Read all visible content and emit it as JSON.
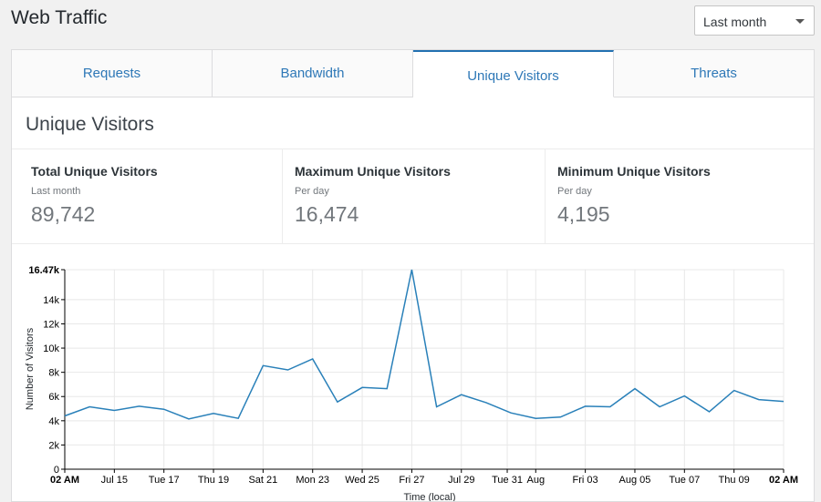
{
  "header": {
    "title": "Web Traffic",
    "range_select": {
      "selected": "Last month"
    }
  },
  "tabs": [
    {
      "label": "Requests",
      "active": false
    },
    {
      "label": "Bandwidth",
      "active": false
    },
    {
      "label": "Unique Visitors",
      "active": true
    },
    {
      "label": "Threats",
      "active": false
    }
  ],
  "section": {
    "title": "Unique Visitors"
  },
  "stats": [
    {
      "label": "Total Unique Visitors",
      "sub": "Last month",
      "value": "89,742"
    },
    {
      "label": "Maximum Unique Visitors",
      "sub": "Per day",
      "value": "16,474"
    },
    {
      "label": "Minimum Unique Visitors",
      "sub": "Per day",
      "value": "4,195"
    }
  ],
  "colors": {
    "accent": "#2271b1",
    "line": "#2980b9",
    "tab_text": "#2e78b7"
  },
  "icons": {
    "range_select": "caret-down-icon"
  },
  "chart_data": {
    "type": "line",
    "xlabel": "Time (local)",
    "ylabel": "Number of Visitors",
    "ylim": [
      0,
      16474
    ],
    "y_ticks": [
      {
        "value": 0,
        "label": "0"
      },
      {
        "value": 2000,
        "label": "2k"
      },
      {
        "value": 4000,
        "label": "4k"
      },
      {
        "value": 6000,
        "label": "6k"
      },
      {
        "value": 8000,
        "label": "8k"
      },
      {
        "value": 10000,
        "label": "10k"
      },
      {
        "value": 12000,
        "label": "12k"
      },
      {
        "value": 14000,
        "label": "14k"
      },
      {
        "value": 16474,
        "label": "16.47k",
        "bold": true
      }
    ],
    "x_ticks": [
      {
        "index": 0,
        "label": "02 AM",
        "bold": true
      },
      {
        "index": 2,
        "label": "Jul 15"
      },
      {
        "index": 4,
        "label": "Tue 17"
      },
      {
        "index": 6,
        "label": "Thu 19"
      },
      {
        "index": 8,
        "label": "Sat 21"
      },
      {
        "index": 10,
        "label": "Mon 23"
      },
      {
        "index": 12,
        "label": "Wed 25"
      },
      {
        "index": 14,
        "label": "Fri 27"
      },
      {
        "index": 16,
        "label": "Jul 29"
      },
      {
        "index": 17.85,
        "label": "Tue 31"
      },
      {
        "index": 19,
        "label": "Aug"
      },
      {
        "index": 21,
        "label": "Fri 03"
      },
      {
        "index": 23,
        "label": "Aug 05"
      },
      {
        "index": 25,
        "label": "Tue 07"
      },
      {
        "index": 27,
        "label": "Thu 09"
      },
      {
        "index": 29,
        "label": "02 AM",
        "bold": true
      }
    ],
    "x_count": 30,
    "values": [
      4400,
      5150,
      4850,
      5200,
      4950,
      4150,
      4600,
      4200,
      8550,
      8200,
      9100,
      5550,
      6750,
      6650,
      16474,
      5150,
      6150,
      5500,
      4650,
      4200,
      4300,
      5200,
      5150,
      6650,
      5150,
      6050,
      4750,
      6500,
      5750,
      5600
    ]
  }
}
